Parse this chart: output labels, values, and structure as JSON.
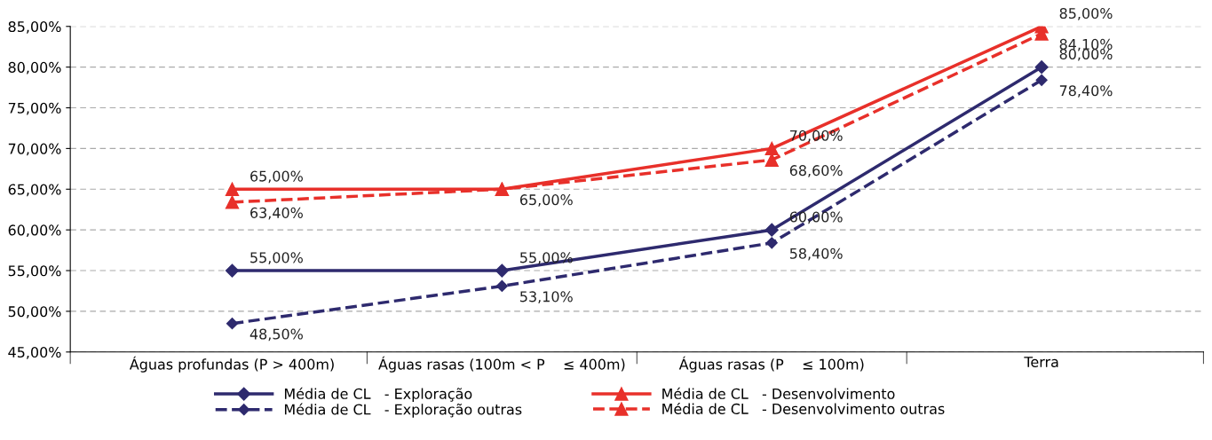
{
  "chart_data": {
    "type": "line",
    "categories": [
      "Águas profundas (P > 400m)",
      "Águas rasas (100m < P    ≤ 400m)",
      "Águas rasas (P    ≤ 100m)",
      "Terra"
    ],
    "series": [
      {
        "name": "Média de CL   - Exploração",
        "color": "#2e2a6e",
        "marker": "diamond",
        "line_style": "solid",
        "values": [
          55,
          55,
          60,
          80
        ],
        "value_labels": [
          "55,00%",
          "55,00%",
          "60,00%",
          "80,00%"
        ]
      },
      {
        "name": "Média de CL   - Exploração outras",
        "color": "#2e2a6e",
        "marker": "diamond",
        "line_style": "dashed",
        "values": [
          48.5,
          53.1,
          58.4,
          78.4
        ],
        "value_labels": [
          "48,50%",
          "53,10%",
          "58,40%",
          "78,40%"
        ]
      },
      {
        "name": "Média de CL   - Desenvolvimento",
        "color": "#e8302a",
        "marker": "triangle",
        "line_style": "solid",
        "values": [
          65,
          65,
          70,
          85
        ],
        "value_labels": [
          "65,00%",
          null,
          "70,00%",
          "85,00%"
        ]
      },
      {
        "name": "Média de CL   - Desenvolvimento outras",
        "color": "#e8302a",
        "marker": "triangle",
        "line_style": "dashed",
        "values": [
          63.4,
          65,
          68.6,
          84.1
        ],
        "value_labels": [
          "63,40%",
          "65,00%",
          "68,60%",
          "84,10%"
        ]
      }
    ],
    "ylim": [
      45,
      85
    ],
    "yticks": [
      {
        "value": 45,
        "label": "45,00%"
      },
      {
        "value": 50,
        "label": "50,00%"
      },
      {
        "value": 55,
        "label": "55,00%"
      },
      {
        "value": 60,
        "label": "60,00%"
      },
      {
        "value": 65,
        "label": "65,00%"
      },
      {
        "value": 70,
        "label": "70,00%"
      },
      {
        "value": 75,
        "label": "75,00%"
      },
      {
        "value": 80,
        "label": "80,00%"
      },
      {
        "value": 85,
        "label": "85,00%"
      }
    ],
    "grid": "y",
    "legend": "bottom"
  }
}
